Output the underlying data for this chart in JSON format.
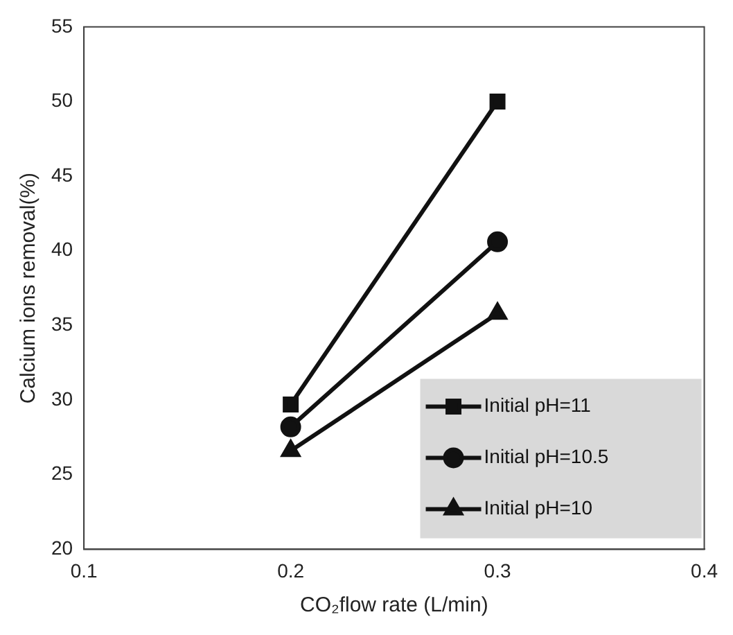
{
  "chart_data": {
    "type": "line",
    "xlabel": "CO₂flow rate (L/min)",
    "ylabel": "Calcium ions removal(%)",
    "x": [
      0.2,
      0.3
    ],
    "series": [
      {
        "name": "Initial pH=11",
        "color": "#111111",
        "values": [
          29.7,
          50
        ],
        "marker": "square"
      },
      {
        "name": "Initial pH=10.5",
        "color": "#111111",
        "values": [
          28.2,
          40.6
        ],
        "marker": "circle"
      },
      {
        "name": "Initial pH=10",
        "color": "#111111",
        "values": [
          26.6,
          35.8
        ],
        "marker": "triangle"
      }
    ],
    "xlim": [
      0.1,
      0.4
    ],
    "xticks": [
      0.1,
      0.2,
      0.3,
      0.4
    ],
    "ylim": [
      20,
      55
    ],
    "yticks": [
      20,
      25,
      30,
      35,
      40,
      45,
      50,
      55
    ],
    "grid": false,
    "legend": "bottom right",
    "line_style": "solid"
  }
}
